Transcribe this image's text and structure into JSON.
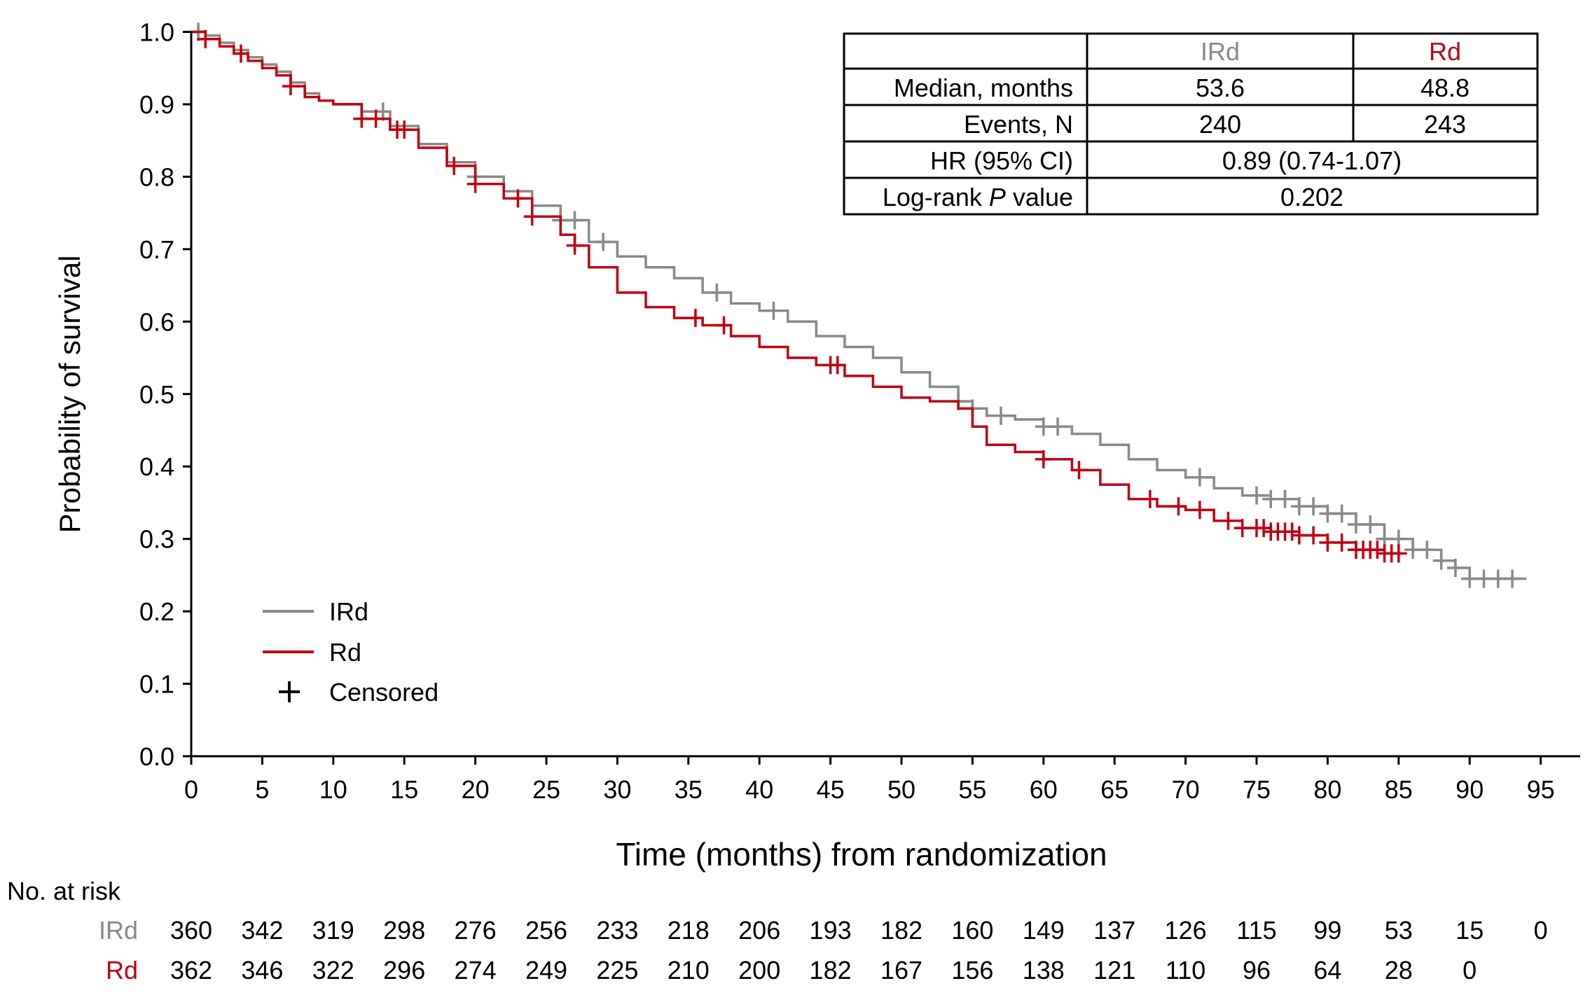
{
  "colors": {
    "ird": "#898989",
    "rd": "#c0000f",
    "axis": "#000000",
    "background": "#ffffff"
  },
  "chart_data": {
    "type": "line",
    "title": "",
    "xlabel": "Time (months) from randomization",
    "ylabel": "Probability of survival",
    "xlim": [
      0,
      98
    ],
    "ylim": [
      0,
      1.0
    ],
    "xticks": [
      0,
      5,
      10,
      15,
      20,
      25,
      30,
      35,
      40,
      45,
      50,
      55,
      60,
      65,
      70,
      75,
      80,
      85,
      90,
      95
    ],
    "yticks": [
      "0.0",
      "0.1",
      "0.2",
      "0.3",
      "0.4",
      "0.5",
      "0.6",
      "0.7",
      "0.8",
      "0.9",
      "1.0"
    ],
    "grid": false,
    "legend": {
      "position": "bottom-left",
      "entries": [
        {
          "label": "IRd",
          "kind": "line",
          "series": "ird"
        },
        {
          "label": "Rd",
          "kind": "line",
          "series": "rd"
        },
        {
          "label": "Censored",
          "kind": "cross"
        }
      ]
    },
    "series": [
      {
        "key": "ird",
        "name": "IRd",
        "color": "#898989",
        "x": [
          0,
          1,
          2,
          3,
          4,
          5,
          6,
          7,
          8,
          9,
          10,
          12,
          14,
          16,
          18,
          20,
          22,
          24,
          26,
          28,
          30,
          32,
          34,
          36,
          38,
          40,
          42,
          44,
          46,
          48,
          50,
          52,
          54,
          55,
          56,
          58,
          60,
          62,
          64,
          66,
          68,
          70,
          72,
          74,
          76,
          78,
          80,
          82,
          84,
          86,
          88,
          89,
          90,
          94
        ],
        "y": [
          1.0,
          0.995,
          0.985,
          0.975,
          0.965,
          0.955,
          0.945,
          0.93,
          0.915,
          0.905,
          0.9,
          0.89,
          0.87,
          0.845,
          0.82,
          0.8,
          0.78,
          0.76,
          0.74,
          0.71,
          0.69,
          0.675,
          0.66,
          0.64,
          0.625,
          0.615,
          0.6,
          0.58,
          0.565,
          0.55,
          0.53,
          0.51,
          0.49,
          0.48,
          0.47,
          0.465,
          0.455,
          0.445,
          0.43,
          0.41,
          0.395,
          0.385,
          0.37,
          0.36,
          0.355,
          0.345,
          0.335,
          0.32,
          0.3,
          0.285,
          0.27,
          0.26,
          0.245,
          0.245
        ],
        "censored_x": [
          0.5,
          13.5,
          20,
          26,
          27,
          29,
          37,
          41,
          54,
          55,
          57,
          60,
          61,
          71,
          75,
          76,
          77,
          78,
          79,
          80,
          81,
          82,
          83,
          84,
          85,
          86,
          87,
          88,
          89,
          90,
          91,
          92,
          93
        ]
      },
      {
        "key": "rd",
        "name": "Rd",
        "color": "#c0000f",
        "x": [
          0,
          1,
          2,
          3,
          4,
          5,
          6,
          7,
          8,
          9,
          10,
          12,
          14,
          16,
          18,
          20,
          22,
          24,
          26,
          27,
          28,
          30,
          32,
          34,
          36,
          38,
          40,
          42,
          44,
          46,
          48,
          50,
          52,
          54,
          55,
          56,
          58,
          60,
          62,
          64,
          66,
          68,
          70,
          72,
          74,
          76,
          78,
          80,
          82,
          84,
          85
        ],
        "y": [
          1.0,
          0.99,
          0.98,
          0.97,
          0.96,
          0.95,
          0.94,
          0.925,
          0.91,
          0.905,
          0.9,
          0.88,
          0.865,
          0.84,
          0.815,
          0.79,
          0.77,
          0.745,
          0.72,
          0.705,
          0.675,
          0.64,
          0.62,
          0.605,
          0.595,
          0.58,
          0.565,
          0.55,
          0.54,
          0.525,
          0.51,
          0.495,
          0.49,
          0.48,
          0.455,
          0.43,
          0.42,
          0.41,
          0.395,
          0.375,
          0.355,
          0.345,
          0.34,
          0.325,
          0.315,
          0.31,
          0.305,
          0.295,
          0.285,
          0.28,
          0.28
        ],
        "censored_x": [
          1,
          3.5,
          7,
          12,
          13,
          14.5,
          15,
          18.5,
          20,
          23,
          24,
          27,
          35.5,
          37.5,
          45,
          45.5,
          60,
          62.5,
          67.5,
          69.5,
          71,
          73,
          74,
          75,
          75.5,
          76,
          76.5,
          77,
          77.5,
          78,
          79,
          80,
          81,
          82,
          82.5,
          83,
          83.5,
          84,
          84.5,
          85
        ]
      }
    ]
  },
  "stats_table": {
    "header": {
      "blank": "",
      "ird": "IRd",
      "rd": "Rd"
    },
    "rows": [
      {
        "label": "Median, months",
        "ird": "53.6",
        "rd": "48.8"
      },
      {
        "label": "Events, N",
        "ird": "240",
        "rd": "243"
      }
    ],
    "hr": {
      "label": "HR (95% CI)",
      "value": "0.89 (0.74-1.07)"
    },
    "logrank": {
      "label_prefix": "Log-rank ",
      "label_italic": "P",
      "label_suffix": " value",
      "value": "0.202"
    }
  },
  "at_risk": {
    "title": "No. at risk",
    "months": [
      0,
      5,
      10,
      15,
      20,
      25,
      30,
      35,
      40,
      45,
      50,
      55,
      60,
      65,
      70,
      75,
      80,
      85,
      90,
      95
    ],
    "rows": [
      {
        "key": "ird",
        "label": "IRd",
        "values": [
          "360",
          "342",
          "319",
          "298",
          "276",
          "256",
          "233",
          "218",
          "206",
          "193",
          "182",
          "160",
          "149",
          "137",
          "126",
          "115",
          "99",
          "53",
          "15",
          "0"
        ]
      },
      {
        "key": "rd",
        "label": "Rd",
        "values": [
          "362",
          "346",
          "322",
          "296",
          "274",
          "249",
          "225",
          "210",
          "200",
          "182",
          "167",
          "156",
          "138",
          "121",
          "110",
          "96",
          "64",
          "28",
          "0"
        ]
      }
    ]
  }
}
